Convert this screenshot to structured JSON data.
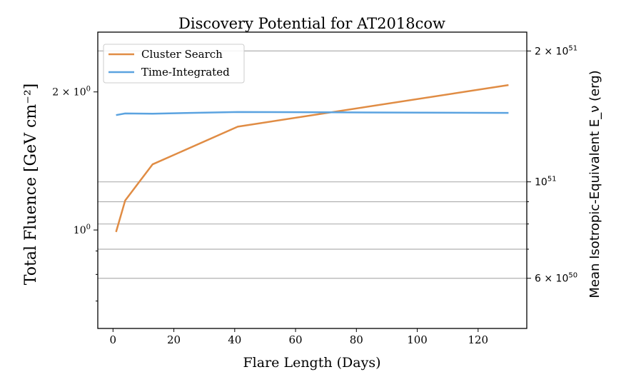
{
  "chart_data": {
    "type": "line",
    "title": "Discovery Potential for AT2018cow",
    "xlabel": "Flare Length (Days)",
    "ylabel": "Total Fluence [GeV cm⁻²]",
    "ylabel_right": "Mean Isotropic-Equivalent E_ν (erg)",
    "xlim": [
      -5,
      136
    ],
    "ylim": [
      0.61,
      2.7
    ],
    "y_scale": "log",
    "grid": "horizontal lines at right-axis ticks",
    "legend_position": "top-left",
    "x_ticks": [
      0,
      20,
      40,
      60,
      80,
      100,
      120
    ],
    "y_ticks_left": [
      {
        "value": 1.0,
        "label_base": "10",
        "label_exp": "0"
      },
      {
        "value": 2.0,
        "label_base": "2 × 10",
        "label_exp": "0"
      }
    ],
    "y_minor_left": [
      0.7,
      0.8,
      0.9,
      3.0
    ],
    "right_axis": {
      "scale": "log",
      "ylim": [
        4.6e+50,
        2.21e+51
      ],
      "ticks": [
        {
          "value": 6e+50,
          "label_base": "6 × 10",
          "label_exp": "50"
        },
        {
          "value": 1e+51,
          "label_base": "10",
          "label_exp": "51"
        },
        {
          "value": 2e+51,
          "label_base": "2 × 10",
          "label_exp": "51"
        }
      ],
      "minor": [
        7e+50,
        8e+50,
        9e+50
      ]
    },
    "series": [
      {
        "name": "Cluster Search",
        "color": "#e08c44",
        "x": [
          1,
          4,
          13,
          41,
          130
        ],
        "y": [
          0.99,
          1.16,
          1.39,
          1.68,
          2.07
        ]
      },
      {
        "name": "Time-Integrated",
        "color": "#5ba3e0",
        "x": [
          1,
          4,
          13,
          41,
          70,
          130
        ],
        "y": [
          1.78,
          1.795,
          1.793,
          1.808,
          1.805,
          1.8
        ]
      }
    ]
  }
}
